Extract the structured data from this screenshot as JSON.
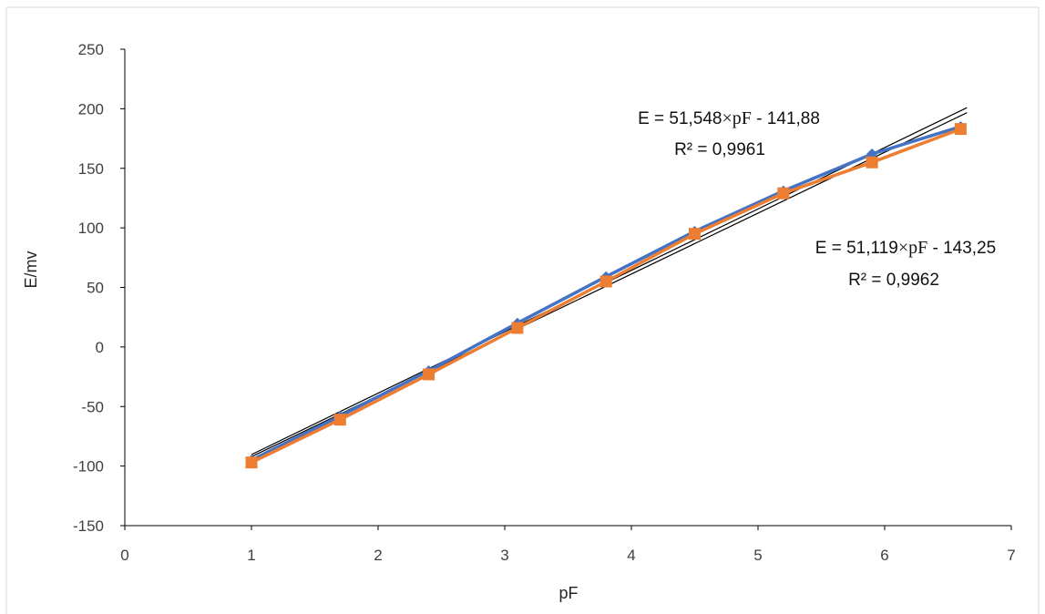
{
  "chart_data": {
    "type": "scatter",
    "xlabel": "pF",
    "ylabel": "E/mv",
    "xlim": [
      0,
      7
    ],
    "ylim": [
      -150,
      250
    ],
    "xticks": [
      0,
      1,
      2,
      3,
      4,
      5,
      6,
      7
    ],
    "yticks": [
      -150,
      -100,
      -50,
      0,
      50,
      100,
      150,
      200,
      250
    ],
    "grid": false,
    "legend": "none",
    "series": [
      {
        "marker": "diamond",
        "color": "#4472C4",
        "x": [
          1,
          1.7,
          2.4,
          3.1,
          3.8,
          4.5,
          5.2,
          5.9,
          6.6
        ],
        "y": [
          -95,
          -58,
          -20,
          20,
          59,
          97,
          131,
          162,
          185
        ]
      },
      {
        "marker": "square",
        "color": "#ED7D31",
        "x": [
          1,
          1.7,
          2.4,
          3.1,
          3.8,
          4.5,
          5.2,
          5.9,
          6.6
        ],
        "y": [
          -97,
          -61,
          -23,
          16,
          55,
          95,
          129,
          155,
          183
        ]
      }
    ],
    "trendlines": [
      {
        "slope": 51.548,
        "intercept": -141.88,
        "color": "#000000",
        "equation_prefix": "E = 51,548",
        "equation_var": "×pF",
        "equation_suffix": " - 141,88",
        "r2": "R² = 0,9961"
      },
      {
        "slope": 51.119,
        "intercept": -143.25,
        "color": "#000000",
        "equation_prefix": "E = 51,119",
        "equation_var": "×pF",
        "equation_suffix": " - 143,25",
        "r2": "R² = 0,9962"
      }
    ]
  }
}
